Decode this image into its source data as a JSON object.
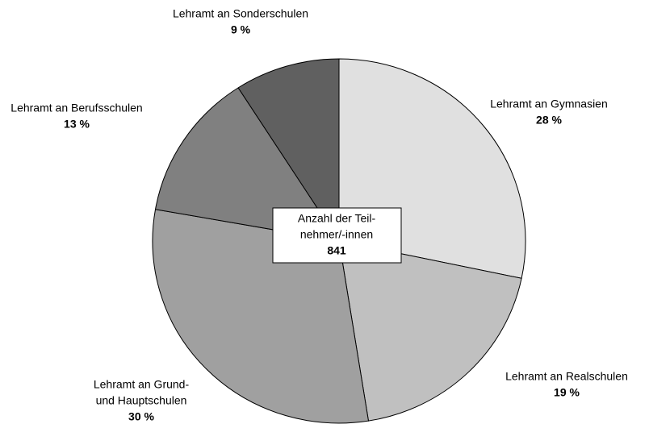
{
  "chart_data": {
    "type": "pie",
    "categories": [
      [
        "Lehramt an Gymnasien"
      ],
      [
        "Lehramt an Realschulen"
      ],
      [
        "Lehramt an Grund-",
        "und Hauptschulen"
      ],
      [
        "Lehramt an Berufsschulen"
      ],
      [
        "Lehramt an Sonderschulen"
      ]
    ],
    "values": [
      28,
      19,
      30,
      13,
      9
    ],
    "value_labels": [
      "28 %",
      "19 %",
      "30 %",
      "13 %",
      "9 %"
    ],
    "colors": [
      "#e0e0e0",
      "#c0c0c0",
      "#a0a0a0",
      "#808080",
      "#606060"
    ],
    "center_label": [
      "Anzahl der Teil-",
      "nehmer/-innen"
    ],
    "total": 841
  }
}
